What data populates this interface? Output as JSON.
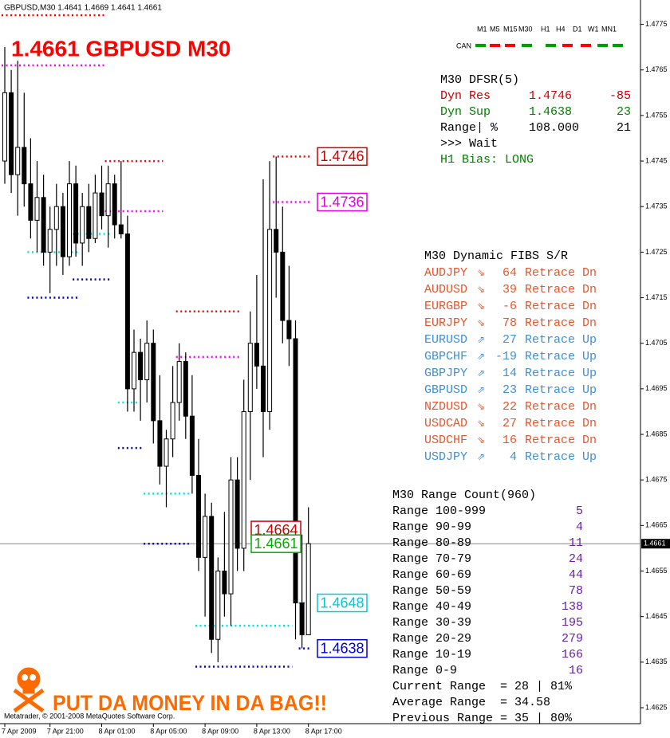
{
  "window_title": "GBPUSD,M30  1.4641 1.4669 1.4641 1.4661",
  "headline": "1.4661 GBPUSD M30",
  "timeframe_panel": {
    "can_label": "CAN",
    "timeframes": [
      "M1",
      "M5",
      "M15",
      "M30",
      "H1",
      "H4",
      "D1",
      "W1",
      "MN1"
    ],
    "colors": [
      "#00a000",
      "#ff0000",
      "#ff0000",
      "#00a000",
      "#00a000",
      "#ff0000",
      "#ff0000",
      "#00a000",
      "#00a000"
    ]
  },
  "dfsr_panel": {
    "title": "M30 DFSR(5)",
    "rows": [
      [
        "Dyn Res",
        "1.4746",
        "-85"
      ],
      [
        "Dyn Sup",
        "1.4638",
        "23"
      ],
      [
        "Range| %",
        "108.000",
        "21"
      ]
    ],
    "row_colors": [
      "#cc0000",
      "#008000",
      "#000000"
    ],
    "status": ">>> Wait",
    "bias": "H1 Bias: LONG",
    "bias_color": "#008000"
  },
  "fibs_panel": {
    "title": "M30 Dynamic FIBS S/R",
    "rows": [
      [
        "AUDJPY",
        "⇘",
        "64",
        "Retrace Dn"
      ],
      [
        "AUDUSD",
        "⇘",
        "39",
        "Retrace Dn"
      ],
      [
        "EURGBP",
        "⇘",
        "-6",
        "Retrace Dn"
      ],
      [
        "EURJPY",
        "⇘",
        "78",
        "Retrace Dn"
      ],
      [
        "EURUSD",
        "⇗",
        "27",
        "Retrace Up"
      ],
      [
        "GBPCHF",
        "⇗",
        "-19",
        "Retrace Up"
      ],
      [
        "GBPJPY",
        "⇗",
        "14",
        "Retrace Up"
      ],
      [
        "GBPUSD",
        "⇗",
        "23",
        "Retrace Up"
      ],
      [
        "NZDUSD",
        "⇘",
        "22",
        "Retrace Dn"
      ],
      [
        "USDCAD",
        "⇘",
        "27",
        "Retrace Dn"
      ],
      [
        "USDCHF",
        "⇘",
        "16",
        "Retrace Dn"
      ],
      [
        "USDJPY",
        "⇗",
        "4",
        "Retrace Up"
      ]
    ],
    "row_colors": [
      "#e8552a",
      "#e8552a",
      "#e8552a",
      "#e8552a",
      "#3d8fd6",
      "#3d8fd6",
      "#3d8fd6",
      "#3d8fd6",
      "#e8552a",
      "#e8552a",
      "#e8552a",
      "#3d8fd6"
    ]
  },
  "range_panel": {
    "title": "M30 Range Count(960)",
    "rows": [
      [
        "Range 100-999",
        "5"
      ],
      [
        "Range 90-99",
        "4"
      ],
      [
        "Range 80-89",
        "11"
      ],
      [
        "Range 70-79",
        "24"
      ],
      [
        "Range 60-69",
        "44"
      ],
      [
        "Range 50-59",
        "78"
      ],
      [
        "Range 40-49",
        "138"
      ],
      [
        "Range 30-39",
        "195"
      ],
      [
        "Range 20-29",
        "279"
      ],
      [
        "Range 10-19",
        "166"
      ],
      [
        "Range 0-9",
        "16"
      ]
    ],
    "count_color": "#6a1fa8",
    "summary": [
      "Current Range  = 28 | 81%",
      "Average Range  = 34.58",
      "Previous Range = 35 | 80%"
    ]
  },
  "copyright": "Metatrader, © 2001-2008 MetaQuotes Software Corp.",
  "banner": "PUT DA MONEY IN DA BAG!!",
  "chart_data": {
    "type": "candlestick",
    "categories": [
      "7 Apr 2009",
      null,
      null,
      null,
      null,
      null,
      null,
      "7 Apr 21:00",
      null,
      null,
      null,
      null,
      null,
      null,
      null,
      "8 Apr 01:00",
      null,
      null,
      null,
      null,
      null,
      null,
      null,
      "8 Apr 05:00",
      null,
      null,
      null,
      null,
      null,
      null,
      null,
      "8 Apr 09:00",
      null,
      null,
      null,
      null,
      null,
      null,
      null,
      "8 Apr 13:00",
      null,
      null,
      null,
      null,
      null,
      null,
      null,
      "8 Apr 17:00"
    ],
    "open": [
      1.4745,
      1.476,
      1.4742,
      1.4748,
      1.474,
      1.4732,
      1.4737,
      1.4725,
      1.473,
      1.4735,
      1.4724,
      1.474,
      1.4727,
      1.4735,
      1.4728,
      1.4738,
      1.4733,
      1.474,
      1.4731,
      1.4729,
      1.4695,
      1.4703,
      1.4697,
      1.4705,
      1.4688,
      1.4678,
      1.4684,
      1.4692,
      1.4701,
      1.4689,
      1.4676,
      1.4658,
      1.4667,
      1.464,
      1.4655,
      1.465,
      1.4675,
      1.466,
      1.469,
      1.4705,
      1.47,
      1.469,
      1.473,
      1.4725,
      1.471,
      1.4706,
      1.4648,
      1.4641
    ],
    "high": [
      1.477,
      1.4765,
      1.4767,
      1.476,
      1.475,
      1.4745,
      1.4742,
      1.4735,
      1.474,
      1.4738,
      1.4745,
      1.4744,
      1.4738,
      1.474,
      1.4742,
      1.4744,
      1.4744,
      1.4742,
      1.4745,
      1.4733,
      1.4708,
      1.4706,
      1.471,
      1.4708,
      1.4698,
      1.4686,
      1.47,
      1.4705,
      1.4703,
      1.4698,
      1.4684,
      1.4672,
      1.467,
      1.4658,
      1.4668,
      1.468,
      1.468,
      1.4697,
      1.4712,
      1.472,
      1.4741,
      1.4745,
      1.4746,
      1.4735,
      1.4722,
      1.471,
      1.4663,
      1.4669
    ],
    "low": [
      1.474,
      1.4738,
      1.4733,
      1.4735,
      1.4728,
      1.4725,
      1.4722,
      1.4716,
      1.4722,
      1.472,
      1.4722,
      1.4724,
      1.4722,
      1.4725,
      1.4727,
      1.473,
      1.4726,
      1.4728,
      1.4728,
      1.469,
      1.469,
      1.4688,
      1.4692,
      1.4683,
      1.4674,
      1.4669,
      1.468,
      1.4688,
      1.4684,
      1.4672,
      1.4655,
      1.4645,
      1.4637,
      1.4635,
      1.4645,
      1.4643,
      1.4655,
      1.4655,
      1.4675,
      1.4695,
      1.468,
      1.4686,
      1.4715,
      1.4705,
      1.47,
      1.464,
      1.4638,
      1.4641
    ],
    "close": [
      1.476,
      1.4742,
      1.4748,
      1.474,
      1.4732,
      1.4737,
      1.4725,
      1.473,
      1.4735,
      1.4724,
      1.474,
      1.4727,
      1.4735,
      1.4728,
      1.4738,
      1.4733,
      1.474,
      1.4731,
      1.4729,
      1.4695,
      1.4703,
      1.4697,
      1.4705,
      1.4688,
      1.4678,
      1.4684,
      1.4692,
      1.4701,
      1.4689,
      1.4676,
      1.4658,
      1.4667,
      1.464,
      1.4655,
      1.465,
      1.4675,
      1.466,
      1.469,
      1.4705,
      1.47,
      1.469,
      1.473,
      1.4725,
      1.471,
      1.4706,
      1.4648,
      1.4641,
      1.4661
    ],
    "levels": [
      {
        "value": 1.4777,
        "from_bar": 0,
        "to_bar": 15,
        "color": "#ff0000"
      },
      {
        "value": 1.4745,
        "from_bar": 16,
        "to_bar": 24,
        "color": "#ff0000"
      },
      {
        "value": 1.4712,
        "from_bar": 27,
        "to_bar": 36,
        "color": "#ff0000"
      },
      {
        "value": 1.4746,
        "from_bar": 42,
        "to_bar": 47,
        "color": "#ff0000"
      },
      {
        "value": 1.4766,
        "from_bar": 0,
        "to_bar": 15,
        "color": "#ff00ff"
      },
      {
        "value": 1.4734,
        "from_bar": 16,
        "to_bar": 24,
        "color": "#ff00ff"
      },
      {
        "value": 1.4702,
        "from_bar": 27,
        "to_bar": 36,
        "color": "#ff00ff"
      },
      {
        "value": 1.4736,
        "from_bar": 42,
        "to_bar": 47,
        "color": "#ff00ff"
      },
      {
        "value": 1.4725,
        "from_bar": 4,
        "to_bar": 11,
        "color": "#00e0e0"
      },
      {
        "value": 1.4729,
        "from_bar": 11,
        "to_bar": 16,
        "color": "#00e0e0"
      },
      {
        "value": 1.4692,
        "from_bar": 18,
        "to_bar": 20,
        "color": "#00e0e0"
      },
      {
        "value": 1.4672,
        "from_bar": 22,
        "to_bar": 28,
        "color": "#00e0e0"
      },
      {
        "value": 1.4643,
        "from_bar": 30,
        "to_bar": 44,
        "color": "#00e0e0"
      },
      {
        "value": 1.4648,
        "from_bar": 46,
        "to_bar": 47,
        "color": "#00e0e0"
      },
      {
        "value": 1.4715,
        "from_bar": 4,
        "to_bar": 11,
        "color": "#0000cc"
      },
      {
        "value": 1.4719,
        "from_bar": 11,
        "to_bar": 16,
        "color": "#0000cc"
      },
      {
        "value": 1.4682,
        "from_bar": 18,
        "to_bar": 21,
        "color": "#0000cc"
      },
      {
        "value": 1.4661,
        "from_bar": 22,
        "to_bar": 28,
        "color": "#0000cc"
      },
      {
        "value": 1.4634,
        "from_bar": 30,
        "to_bar": 44,
        "color": "#0000cc"
      },
      {
        "value": 1.4638,
        "from_bar": 46,
        "to_bar": 47,
        "color": "#0000cc"
      }
    ],
    "price_labels": [
      {
        "value": 1.4746,
        "color": "#cc0000"
      },
      {
        "value": 1.4736,
        "color": "#dd00dd"
      },
      {
        "value": 1.4664,
        "color": "#cc0000"
      },
      {
        "value": 1.4661,
        "color": "#00b000"
      },
      {
        "value": 1.4648,
        "color": "#00c8d8"
      },
      {
        "value": 1.4638,
        "color": "#0000cc"
      }
    ],
    "bid": 1.4661,
    "ylim": [
      1.46215,
      1.478
    ],
    "yticks": [
      1.4775,
      1.4765,
      1.4755,
      1.4745,
      1.4735,
      1.4725,
      1.4715,
      1.4705,
      1.4695,
      1.4685,
      1.4675,
      1.4665,
      1.4655,
      1.4645,
      1.4635,
      1.4625
    ]
  }
}
